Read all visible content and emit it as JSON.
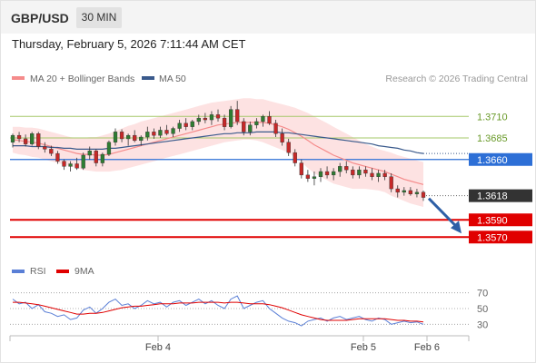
{
  "header": {
    "symbol": "GBP/USD",
    "timeframe": "30 MIN",
    "datetime": "Thursday, February 5, 2026 7:11:44 AM CET"
  },
  "legend": {
    "ma20_label": "MA 20 + Bollinger Bands",
    "ma50_label": "MA 50",
    "copyright": "Research © 2026 Trading Central"
  },
  "colors": {
    "ma20": "#f58b8b",
    "ma50": "#3a5a8c",
    "bollinger_fill": "#fde2e2",
    "candle_up": "#2e7d32",
    "candle_down": "#c62828",
    "resistance": "#a6c86a",
    "pivot": "#2d6fd6",
    "support": "#e00000",
    "current": "#333333",
    "rsi": "#5a7fd6",
    "rsi_ma": "#e00000",
    "arrow": "#2e5fa6"
  },
  "chart_data": [
    {
      "type": "candlestick",
      "x_labels": [
        "Feb 4",
        "Feb 5",
        "Feb 6"
      ],
      "y_range": [
        1.3545,
        1.3745
      ],
      "price_levels": [
        {
          "value": "1.3710",
          "kind": "resistance"
        },
        {
          "value": "1.3685",
          "kind": "resistance"
        },
        {
          "value": "1.3660",
          "kind": "pivot"
        },
        {
          "value": "1.3618",
          "kind": "current"
        },
        {
          "value": "1.3590",
          "kind": "support"
        },
        {
          "value": "1.3570",
          "kind": "support"
        }
      ],
      "candles": [
        [
          1.368,
          1.369,
          1.3674,
          1.3688
        ],
        [
          1.3688,
          1.3692,
          1.368,
          1.3684
        ],
        [
          1.3684,
          1.3689,
          1.3675,
          1.3678
        ],
        [
          1.3678,
          1.3692,
          1.3676,
          1.369
        ],
        [
          1.369,
          1.3692,
          1.3672,
          1.3675
        ],
        [
          1.3675,
          1.368,
          1.3668,
          1.3672
        ],
        [
          1.3672,
          1.3676,
          1.3664,
          1.3667
        ],
        [
          1.3667,
          1.367,
          1.3655,
          1.3658
        ],
        [
          1.3658,
          1.366,
          1.3648,
          1.3652
        ],
        [
          1.3652,
          1.3658,
          1.3646,
          1.3655
        ],
        [
          1.3655,
          1.3662,
          1.3648,
          1.365
        ],
        [
          1.365,
          1.3668,
          1.3648,
          1.3665
        ],
        [
          1.3665,
          1.3675,
          1.366,
          1.367
        ],
        [
          1.367,
          1.3672,
          1.3652,
          1.3656
        ],
        [
          1.3656,
          1.3668,
          1.3652,
          1.3666
        ],
        [
          1.3666,
          1.3682,
          1.3664,
          1.368
        ],
        [
          1.368,
          1.3696,
          1.3676,
          1.3692
        ],
        [
          1.3692,
          1.3695,
          1.368,
          1.3684
        ],
        [
          1.3684,
          1.369,
          1.3676,
          1.3688
        ],
        [
          1.3688,
          1.3694,
          1.368,
          1.3682
        ],
        [
          1.3682,
          1.3688,
          1.3676,
          1.3686
        ],
        [
          1.3686,
          1.3698,
          1.3682,
          1.3692
        ],
        [
          1.3692,
          1.3696,
          1.3684,
          1.3688
        ],
        [
          1.3688,
          1.3698,
          1.3685,
          1.3694
        ],
        [
          1.3694,
          1.37,
          1.3688,
          1.369
        ],
        [
          1.369,
          1.3698,
          1.3686,
          1.3696
        ],
        [
          1.3696,
          1.3706,
          1.3692,
          1.3702
        ],
        [
          1.3702,
          1.3708,
          1.3694,
          1.3698
        ],
        [
          1.3698,
          1.3706,
          1.3694,
          1.3704
        ],
        [
          1.3704,
          1.3712,
          1.37,
          1.3708
        ],
        [
          1.3708,
          1.3714,
          1.3702,
          1.3706
        ],
        [
          1.3706,
          1.3716,
          1.37,
          1.3712
        ],
        [
          1.3712,
          1.3718,
          1.3704,
          1.3708
        ],
        [
          1.3708,
          1.3712,
          1.3694,
          1.3698
        ],
        [
          1.3698,
          1.3722,
          1.3696,
          1.3718
        ],
        [
          1.3718,
          1.3728,
          1.37,
          1.3704
        ],
        [
          1.3704,
          1.3708,
          1.3688,
          1.3692
        ],
        [
          1.3692,
          1.3704,
          1.3688,
          1.37
        ],
        [
          1.37,
          1.3708,
          1.3696,
          1.3704
        ],
        [
          1.3704,
          1.3712,
          1.3698,
          1.371
        ],
        [
          1.371,
          1.3716,
          1.37,
          1.3702
        ],
        [
          1.3702,
          1.3706,
          1.3686,
          1.369
        ],
        [
          1.369,
          1.3696,
          1.3676,
          1.368
        ],
        [
          1.368,
          1.3684,
          1.3664,
          1.3668
        ],
        [
          1.3668,
          1.3672,
          1.3652,
          1.3656
        ],
        [
          1.3656,
          1.366,
          1.3638,
          1.3642
        ],
        [
          1.3642,
          1.3648,
          1.3634,
          1.3638
        ],
        [
          1.3638,
          1.3646,
          1.363,
          1.364
        ],
        [
          1.364,
          1.365,
          1.3634,
          1.3646
        ],
        [
          1.3646,
          1.3652,
          1.3638,
          1.3642
        ],
        [
          1.3642,
          1.365,
          1.3636,
          1.3646
        ],
        [
          1.3646,
          1.3656,
          1.364,
          1.3652
        ],
        [
          1.3652,
          1.3658,
          1.3644,
          1.3648
        ],
        [
          1.3648,
          1.3652,
          1.3638,
          1.3642
        ],
        [
          1.3642,
          1.3652,
          1.3638,
          1.3648
        ],
        [
          1.3648,
          1.3652,
          1.364,
          1.3644
        ],
        [
          1.3644,
          1.365,
          1.3636,
          1.364
        ],
        [
          1.364,
          1.3648,
          1.3634,
          1.3644
        ],
        [
          1.3644,
          1.3648,
          1.3636,
          1.364
        ],
        [
          1.364,
          1.3644,
          1.3622,
          1.3626
        ],
        [
          1.3626,
          1.363,
          1.3616,
          1.3622
        ],
        [
          1.3622,
          1.3628,
          1.3618,
          1.3624
        ],
        [
          1.3624,
          1.3628,
          1.3618,
          1.362
        ],
        [
          1.362,
          1.3626,
          1.3616,
          1.3622
        ],
        [
          1.3622,
          1.3624,
          1.3612,
          1.3616
        ]
      ],
      "ma20": [
        1.3683,
        1.3682,
        1.3681,
        1.368,
        1.3679,
        1.3677,
        1.3675,
        1.3673,
        1.3671,
        1.3669,
        1.3667,
        1.3666,
        1.3666,
        1.3665,
        1.3665,
        1.3666,
        1.3668,
        1.367,
        1.3672,
        1.3674,
        1.3676,
        1.3678,
        1.368,
        1.3682,
        1.3684,
        1.3686,
        1.3688,
        1.369,
        1.3692,
        1.3694,
        1.3696,
        1.3698,
        1.37,
        1.3701,
        1.3702,
        1.3703,
        1.3703,
        1.3703,
        1.3703,
        1.3703,
        1.3702,
        1.37,
        1.3698,
        1.3695,
        1.3691,
        1.3687,
        1.3682,
        1.3677,
        1.3673,
        1.3669,
        1.3665,
        1.3662,
        1.3659,
        1.3656,
        1.3654,
        1.3652,
        1.365,
        1.3648,
        1.3646,
        1.3643,
        1.364,
        1.3637,
        1.3635,
        1.3633,
        1.3631
      ],
      "ma50": [
        1.3676,
        1.3676,
        1.3676,
        1.3675,
        1.3675,
        1.3675,
        1.3674,
        1.3674,
        1.3673,
        1.3673,
        1.3672,
        1.3672,
        1.3672,
        1.3672,
        1.3672,
        1.3673,
        1.3673,
        1.3674,
        1.3675,
        1.3676,
        1.3677,
        1.3678,
        1.3679,
        1.368,
        1.3681,
        1.3682,
        1.3683,
        1.3684,
        1.3685,
        1.3686,
        1.3687,
        1.3688,
        1.3689,
        1.369,
        1.369,
        1.3691,
        1.3691,
        1.3691,
        1.3692,
        1.3692,
        1.3692,
        1.3692,
        1.3691,
        1.3691,
        1.369,
        1.3689,
        1.3688,
        1.3687,
        1.3686,
        1.3685,
        1.3684,
        1.3683,
        1.3682,
        1.3681,
        1.368,
        1.3679,
        1.3678,
        1.3676,
        1.3675,
        1.3674,
        1.3673,
        1.3671,
        1.367,
        1.3668,
        1.3667
      ],
      "boll_upper": [
        1.3698,
        1.3698,
        1.3697,
        1.3697,
        1.3696,
        1.3694,
        1.3692,
        1.369,
        1.3688,
        1.3686,
        1.3685,
        1.3685,
        1.3686,
        1.3686,
        1.3688,
        1.369,
        1.3693,
        1.3696,
        1.3699,
        1.3701,
        1.3704,
        1.3706,
        1.3708,
        1.371,
        1.3712,
        1.3714,
        1.3716,
        1.3718,
        1.372,
        1.3722,
        1.3724,
        1.3726,
        1.3727,
        1.3728,
        1.3729,
        1.373,
        1.3731,
        1.3731,
        1.373,
        1.373,
        1.3728,
        1.3726,
        1.3724,
        1.3722,
        1.372,
        1.3717,
        1.3714,
        1.371,
        1.3706,
        1.3702,
        1.3698,
        1.3694,
        1.369,
        1.3686,
        1.3682,
        1.3678,
        1.3675,
        1.3672,
        1.367,
        1.3668,
        1.3665,
        1.3663,
        1.3661,
        1.3659,
        1.3657
      ],
      "boll_lower": [
        1.3668,
        1.3666,
        1.3665,
        1.3663,
        1.3662,
        1.366,
        1.3658,
        1.3656,
        1.3654,
        1.3652,
        1.365,
        1.3648,
        1.3647,
        1.3646,
        1.3646,
        1.3646,
        1.3647,
        1.3648,
        1.365,
        1.3652,
        1.3654,
        1.3656,
        1.3658,
        1.366,
        1.3662,
        1.3664,
        1.3666,
        1.3668,
        1.367,
        1.3672,
        1.3674,
        1.3676,
        1.3678,
        1.368,
        1.3681,
        1.3682,
        1.3683,
        1.3683,
        1.3682,
        1.368,
        1.3677,
        1.3674,
        1.3671,
        1.3668,
        1.3662,
        1.3657,
        1.365,
        1.3644,
        1.364,
        1.3636,
        1.3632,
        1.363,
        1.3628,
        1.3626,
        1.3626,
        1.3626,
        1.3625,
        1.3624,
        1.3622,
        1.3618,
        1.3615,
        1.3612,
        1.3609,
        1.3607,
        1.3605
      ],
      "projection_target": 1.357
    },
    {
      "type": "line",
      "title": "RSI",
      "legend": [
        "RSI",
        "9MA"
      ],
      "y_ticks": [
        "70",
        "50",
        "30"
      ],
      "y_range": [
        20,
        80
      ],
      "series": [
        {
          "name": "RSI",
          "values": [
            62,
            56,
            58,
            50,
            55,
            46,
            44,
            40,
            42,
            36,
            38,
            48,
            52,
            44,
            50,
            58,
            62,
            54,
            56,
            50,
            54,
            60,
            56,
            58,
            52,
            58,
            60,
            54,
            58,
            62,
            56,
            60,
            54,
            50,
            62,
            66,
            50,
            54,
            58,
            60,
            50,
            44,
            38,
            34,
            32,
            28,
            34,
            36,
            38,
            34,
            38,
            40,
            36,
            38,
            40,
            36,
            34,
            38,
            36,
            30,
            32,
            34,
            32,
            33,
            30
          ]
        },
        {
          "name": "9MA",
          "values": [
            58,
            58,
            57,
            56,
            55,
            53,
            51,
            49,
            47,
            45,
            43,
            43,
            44,
            44,
            45,
            47,
            49,
            51,
            52,
            53,
            53,
            54,
            55,
            56,
            56,
            56,
            57,
            57,
            57,
            58,
            58,
            58,
            58,
            57,
            58,
            58,
            57,
            56,
            56,
            56,
            55,
            53,
            51,
            48,
            45,
            42,
            40,
            38,
            36,
            35,
            35,
            35,
            35,
            36,
            37,
            37,
            37,
            37,
            37,
            36,
            35,
            35,
            34,
            34,
            33
          ]
        }
      ]
    }
  ]
}
